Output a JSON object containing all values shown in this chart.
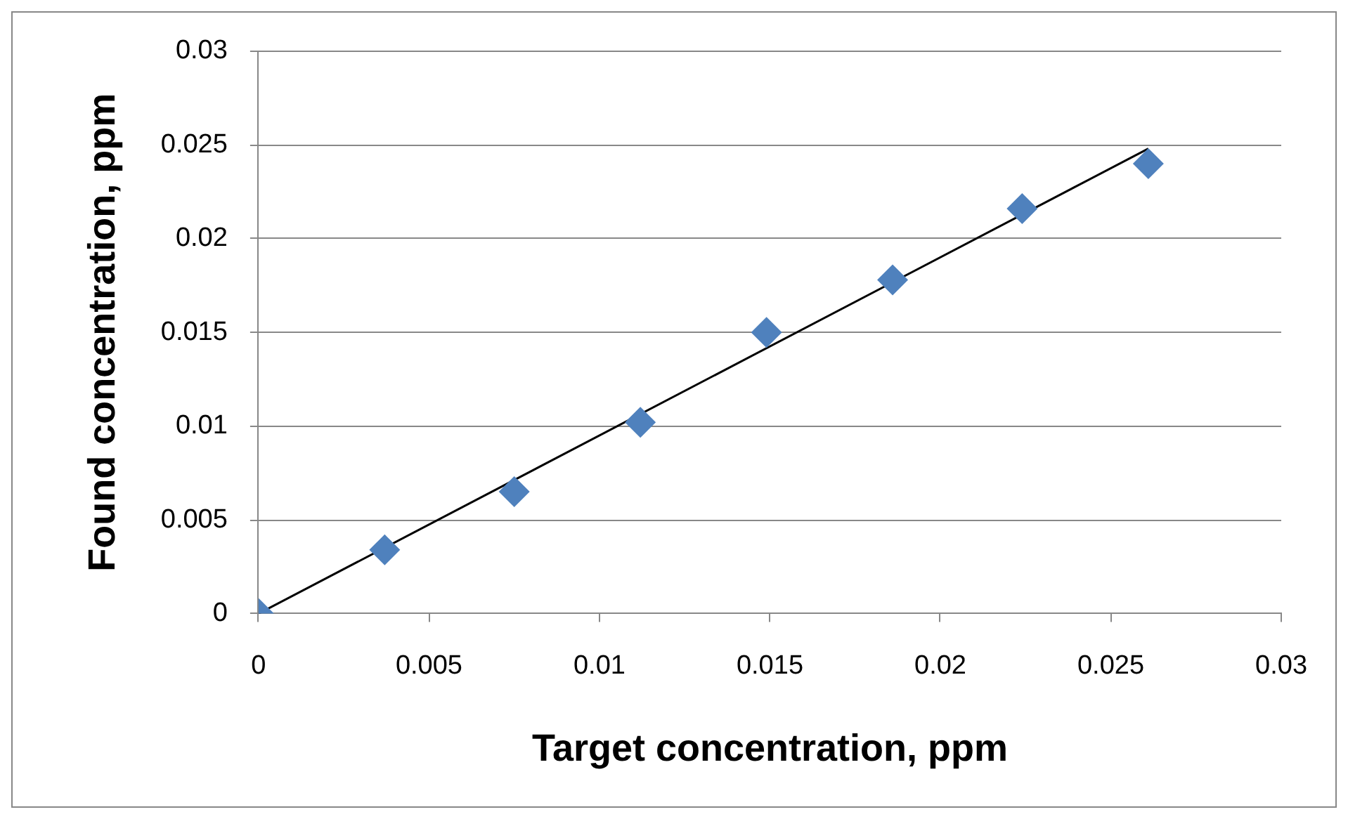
{
  "chart_data": {
    "type": "scatter",
    "xlabel": "Target concentration, ppm",
    "ylabel": "Found concentration, ppm",
    "xlim": [
      0,
      0.03
    ],
    "ylim": [
      0,
      0.03
    ],
    "xticks": [
      0,
      0.005,
      0.01,
      0.015,
      0.02,
      0.025,
      0.03
    ],
    "yticks": [
      0,
      0.005,
      0.01,
      0.015,
      0.02,
      0.025,
      0.03
    ],
    "grid": "y",
    "legend": false,
    "marker": "diamond",
    "series": [
      {
        "type": "scatter",
        "color": "#4f81bd",
        "x": [
          0,
          0.0037,
          0.0075,
          0.0112,
          0.0149,
          0.0186,
          0.0224,
          0.0261
        ],
        "values": [
          0,
          0.0034,
          0.0065,
          0.0102,
          0.015,
          0.0178,
          0.0216,
          0.024
        ]
      },
      {
        "type": "line",
        "color": "#000000",
        "marker": "none",
        "line_style": "solid",
        "x": [
          0,
          0.0261
        ],
        "values": [
          0,
          0.0248
        ]
      }
    ]
  }
}
